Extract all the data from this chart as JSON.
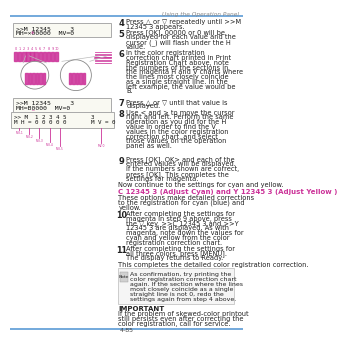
{
  "title_right": "Using the Operation Panel",
  "page_number": "4-85",
  "top_line_color": "#5b9bd5",
  "bottom_line_color": "#5b9bd5",
  "background": "#ffffff",
  "text_color": "#222222",
  "dark_gray": "#444444",
  "light_gray": "#888888",
  "magenta_color": "#cc3399",
  "cyan_color": "#0099cc",
  "header_color": "#cc3399",
  "box_bg": "#f9f9f2",
  "box_border": "#aaaaaa",
  "step4_text": "Press △ or ▽ repeatedly until >>M 12345  3 appears.",
  "step5_text": "Press [OK]. 00000 or 0 will be displayed for each value and the cursor (_) will flash under the H value.",
  "step6_text": "In the color registration correction chart printed in Print Registration Chart above, note the numbers of the sections in the magenta H and V charts where the lines most closely coincide as a single straight line. In the left example, the value would be B.",
  "step7_text": "Press △ or ▽ until that value is displayed.",
  "step8_text": "Use < and > to move the cursor right and left. Perform the same operation as you did for the H value in order to find the V values in the color registration correction chart, and select those values on the operation panel as well.",
  "step9_text": "Press [OK]. OK> and each of the entered values will be displayed. If the numbers shown are correct, press [OK]. This completes the settings for magenta.",
  "continue_text": "Now continue to the settings for cyan and yellow.",
  "section_header": "C 12345 3 (Adjust Cyan) and Y 12345 3 (Adjust Yellow )",
  "section_desc": "These options make detailed corrections to the registration for cyan (blue) and yellow.",
  "step10_text": "After completing the settings for magenta in step 9 above, press the ▽ key. >>C 12345  3 and >>Y 12345  3 are displayed. As with magenta, note down the values for cyan and yellow from the color registration correction chart.",
  "step11_text": "After completing the settings for all three colors, press [MENU]. The display returns to Ready.",
  "complete_text": "This completes the detailed color registration correction.",
  "note_text": "As confirmation, try printing the color registration correction chart again. If the section where the lines most closely coincide as a single straight line is not 0, redo the settings again from step 4 above.",
  "important_label": "IMPORTANT",
  "important_text": " If the problem of skewed-color printout still persists even after correcting the color registration, call for service.",
  "box1_line1": ">>M 12345     3",
  "box1_line2": "MH=×00000  MV=0",
  "box2_line1": ">>M 12345     3",
  "box2_line2": "MH=B0000  MV=0",
  "box3_line1": ">> M  1 2 3 4 5       3",
  "box3_line2": "M H = 0 0 0 0 0       M V = 0"
}
